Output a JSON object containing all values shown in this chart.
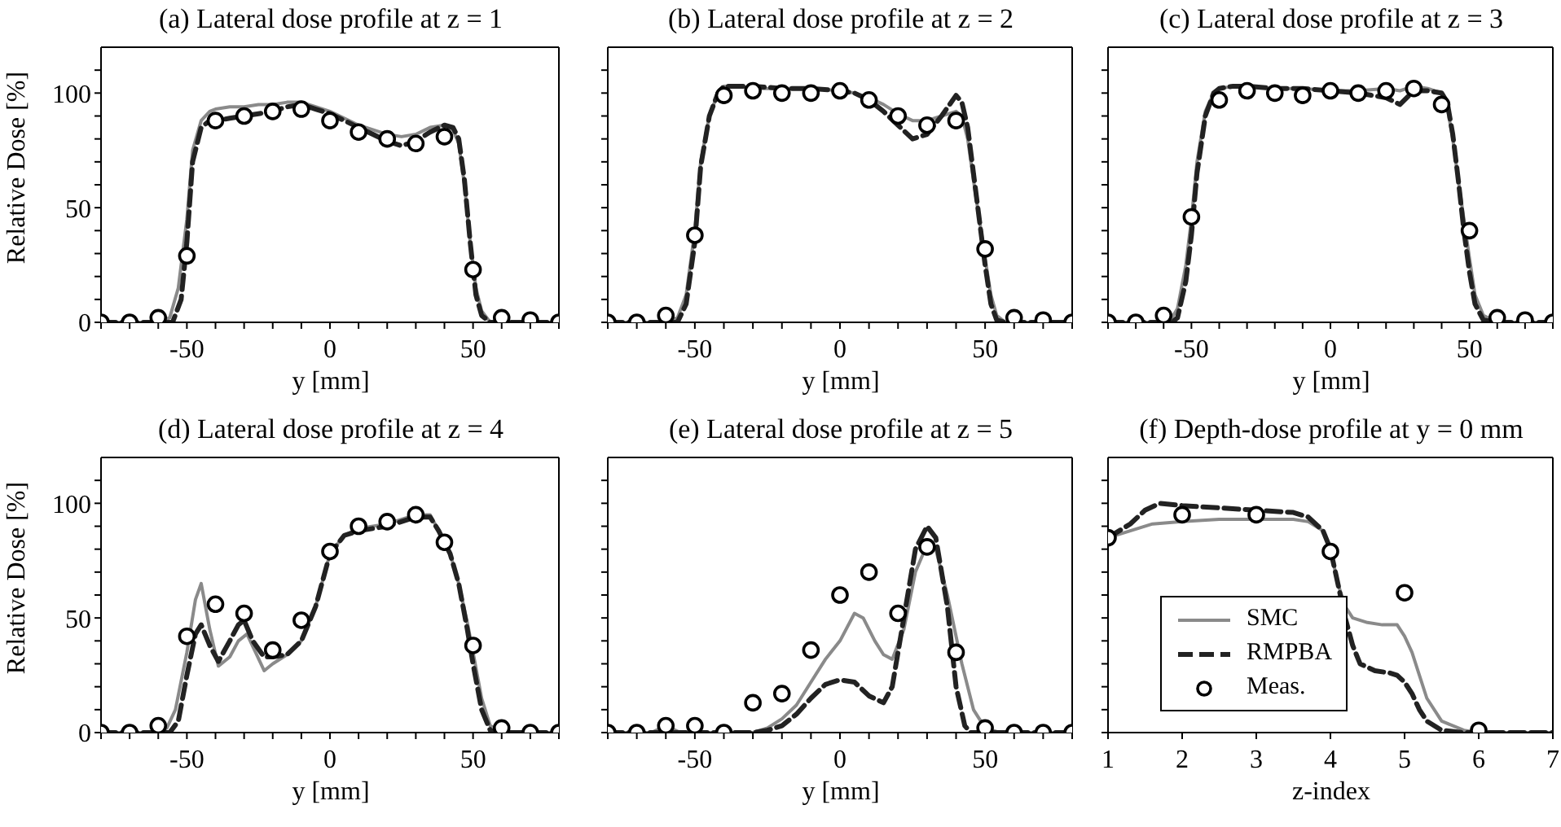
{
  "chart_data": [
    {
      "type": "line",
      "title": "(a) Lateral dose profile at z = 1",
      "xlabel": "y [mm]",
      "ylabel": "Relative Dose [%]",
      "xlim": [
        -80,
        80
      ],
      "ylim": [
        0,
        120
      ],
      "xticks": [
        {
          "value": -80,
          "label": null
        },
        {
          "value": -70,
          "label": null
        },
        {
          "value": -60,
          "label": null
        },
        -50,
        {
          "value": -40,
          "label": null
        },
        {
          "value": -30,
          "label": null
        },
        {
          "value": -20,
          "label": null
        },
        {
          "value": -10,
          "label": null
        },
        0,
        {
          "value": 10,
          "label": null
        },
        {
          "value": 20,
          "label": null
        },
        {
          "value": 30,
          "label": null
        },
        {
          "value": 40,
          "label": null
        },
        50,
        {
          "value": 60,
          "label": null
        },
        {
          "value": 70,
          "label": null
        },
        {
          "value": 80,
          "label": null
        }
      ],
      "yticks": [
        0,
        {
          "value": 10,
          "label": null
        },
        {
          "value": 20,
          "label": null
        },
        {
          "value": 30,
          "label": null
        },
        {
          "value": 40,
          "label": null
        },
        50,
        {
          "value": 60,
          "label": null
        },
        {
          "value": 70,
          "label": null
        },
        {
          "value": 80,
          "label": null
        },
        {
          "value": 90,
          "label": null
        },
        100,
        {
          "value": 110,
          "label": null
        }
      ],
      "series": [
        {
          "type": "line",
          "color": "#8a8a8a",
          "line_style": "solid",
          "x": [
            -80,
            -60,
            -56,
            -53,
            -50,
            -48,
            -45,
            -42,
            -40,
            -35,
            -30,
            -25,
            -20,
            -15,
            -10,
            -5,
            0,
            5,
            10,
            15,
            20,
            25,
            30,
            35,
            40,
            43,
            45,
            47,
            49,
            51,
            53,
            56,
            60,
            80
          ],
          "values": [
            0,
            0,
            2,
            15,
            45,
            75,
            88,
            92,
            93,
            94,
            94,
            95,
            95,
            96,
            96,
            94,
            92,
            89,
            86,
            84,
            82,
            81,
            82,
            85,
            86,
            84,
            78,
            60,
            35,
            15,
            5,
            0,
            0,
            0
          ]
        },
        {
          "type": "line",
          "color": "#222222",
          "line_style": "dashed",
          "x": [
            -80,
            -60,
            -55,
            -52,
            -50,
            -48,
            -45,
            -42,
            -40,
            -35,
            -30,
            -25,
            -20,
            -15,
            -10,
            -5,
            0,
            5,
            10,
            15,
            20,
            25,
            30,
            35,
            40,
            43,
            45,
            47,
            49,
            51,
            53,
            56,
            60,
            80
          ],
          "values": [
            0,
            0,
            0,
            10,
            35,
            70,
            85,
            88,
            88,
            89,
            90,
            91,
            92,
            94,
            95,
            93,
            91,
            88,
            85,
            82,
            79,
            77,
            79,
            83,
            86,
            85,
            80,
            62,
            35,
            12,
            3,
            0,
            0,
            0
          ]
        },
        {
          "type": "scatter",
          "color": "#000000",
          "marker": "circle",
          "x": [
            -80,
            -70,
            -60,
            -50,
            -40,
            -30,
            -20,
            -10,
            0,
            10,
            20,
            30,
            40,
            50,
            60,
            70,
            80
          ],
          "values": [
            0,
            0,
            2,
            29,
            88,
            90,
            92,
            93,
            88,
            83,
            80,
            78,
            81,
            23,
            2,
            1,
            0
          ]
        }
      ]
    },
    {
      "type": "line",
      "title": "(b) Lateral dose profile at z = 2",
      "xlabel": "y [mm]",
      "tick_labels": "x",
      "xlim": [
        -80,
        80
      ],
      "ylim": [
        0,
        120
      ],
      "xticks": [
        {
          "value": -80,
          "label": null
        },
        {
          "value": -70,
          "label": null
        },
        {
          "value": -60,
          "label": null
        },
        -50,
        {
          "value": -40,
          "label": null
        },
        {
          "value": -30,
          "label": null
        },
        {
          "value": -20,
          "label": null
        },
        {
          "value": -10,
          "label": null
        },
        0,
        {
          "value": 10,
          "label": null
        },
        {
          "value": 20,
          "label": null
        },
        {
          "value": 30,
          "label": null
        },
        {
          "value": 40,
          "label": null
        },
        50,
        {
          "value": 60,
          "label": null
        },
        {
          "value": 70,
          "label": null
        },
        {
          "value": 80,
          "label": null
        }
      ],
      "yticks": [
        0,
        {
          "value": 10,
          "label": null
        },
        {
          "value": 20,
          "label": null
        },
        {
          "value": 30,
          "label": null
        },
        {
          "value": 40,
          "label": null
        },
        50,
        {
          "value": 60,
          "label": null
        },
        {
          "value": 70,
          "label": null
        },
        {
          "value": 80,
          "label": null
        },
        {
          "value": 90,
          "label": null
        },
        100,
        {
          "value": 110,
          "label": null
        }
      ],
      "series": [
        {
          "type": "line",
          "color": "#8a8a8a",
          "line_style": "solid",
          "x": [
            -80,
            -60,
            -56,
            -53,
            -50,
            -48,
            -45,
            -42,
            -40,
            -35,
            -30,
            -20,
            -10,
            0,
            5,
            10,
            15,
            20,
            25,
            30,
            35,
            40,
            42,
            44,
            46,
            48,
            50,
            52,
            54,
            57,
            60,
            80
          ],
          "values": [
            0,
            0,
            2,
            12,
            40,
            70,
            90,
            100,
            103,
            103,
            102,
            102,
            102,
            101,
            100,
            98,
            95,
            91,
            88,
            88,
            90,
            92,
            90,
            80,
            62,
            45,
            28,
            12,
            3,
            0,
            0,
            0
          ]
        },
        {
          "type": "line",
          "color": "#222222",
          "line_style": "dashed",
          "x": [
            -80,
            -60,
            -56,
            -53,
            -50,
            -48,
            -45,
            -42,
            -40,
            -35,
            -30,
            -20,
            -10,
            0,
            5,
            10,
            15,
            20,
            25,
            30,
            35,
            40,
            42,
            44,
            46,
            48,
            50,
            52,
            54,
            57,
            60,
            80
          ],
          "values": [
            0,
            0,
            0,
            8,
            35,
            68,
            90,
            100,
            103,
            103,
            103,
            102,
            102,
            101,
            100,
            97,
            92,
            86,
            80,
            82,
            90,
            99,
            96,
            85,
            65,
            45,
            25,
            8,
            1,
            0,
            0,
            0
          ]
        },
        {
          "type": "scatter",
          "color": "#000000",
          "marker": "circle",
          "x": [
            -80,
            -70,
            -60,
            -50,
            -40,
            -30,
            -20,
            -10,
            0,
            10,
            20,
            30,
            40,
            50,
            60,
            70,
            80
          ],
          "values": [
            0,
            0,
            3,
            38,
            99,
            101,
            100,
            100,
            101,
            97,
            90,
            86,
            88,
            32,
            2,
            1,
            0
          ]
        }
      ]
    },
    {
      "type": "line",
      "title": "(c) Lateral dose profile at z = 3",
      "xlabel": "y [mm]",
      "tick_labels": "x",
      "xlim": [
        -80,
        80
      ],
      "ylim": [
        0,
        120
      ],
      "xticks": [
        {
          "value": -80,
          "label": null
        },
        {
          "value": -70,
          "label": null
        },
        {
          "value": -60,
          "label": null
        },
        -50,
        {
          "value": -40,
          "label": null
        },
        {
          "value": -30,
          "label": null
        },
        {
          "value": -20,
          "label": null
        },
        {
          "value": -10,
          "label": null
        },
        0,
        {
          "value": 10,
          "label": null
        },
        {
          "value": 20,
          "label": null
        },
        {
          "value": 30,
          "label": null
        },
        {
          "value": 40,
          "label": null
        },
        50,
        {
          "value": 60,
          "label": null
        },
        {
          "value": 70,
          "label": null
        },
        {
          "value": 80,
          "label": null
        }
      ],
      "yticks": [
        0,
        {
          "value": 10,
          "label": null
        },
        {
          "value": 20,
          "label": null
        },
        {
          "value": 30,
          "label": null
        },
        {
          "value": 40,
          "label": null
        },
        50,
        {
          "value": 60,
          "label": null
        },
        {
          "value": 70,
          "label": null
        },
        {
          "value": 80,
          "label": null
        },
        {
          "value": 90,
          "label": null
        },
        100,
        {
          "value": 110,
          "label": null
        }
      ],
      "series": [
        {
          "type": "line",
          "color": "#8a8a8a",
          "line_style": "solid",
          "x": [
            -80,
            -60,
            -57,
            -55,
            -52,
            -50,
            -48,
            -45,
            -42,
            -40,
            -35,
            -30,
            -20,
            -10,
            0,
            10,
            20,
            25,
            30,
            35,
            40,
            42,
            44,
            46,
            48,
            50,
            52,
            55,
            60,
            80
          ],
          "values": [
            0,
            0,
            2,
            6,
            25,
            45,
            70,
            92,
            100,
            102,
            103,
            103,
            102,
            102,
            101,
            101,
            102,
            101,
            103,
            102,
            100,
            94,
            80,
            62,
            45,
            28,
            12,
            3,
            0,
            0
          ]
        },
        {
          "type": "line",
          "color": "#222222",
          "line_style": "dashed",
          "x": [
            -80,
            -60,
            -57,
            -55,
            -52,
            -50,
            -48,
            -45,
            -42,
            -40,
            -35,
            -30,
            -20,
            -10,
            0,
            10,
            20,
            25,
            30,
            35,
            40,
            42,
            44,
            46,
            48,
            50,
            52,
            55,
            60,
            80
          ],
          "values": [
            0,
            0,
            0,
            2,
            18,
            38,
            65,
            90,
            100,
            102,
            103,
            103,
            102,
            102,
            101,
            100,
            98,
            95,
            101,
            101,
            100,
            96,
            82,
            62,
            40,
            22,
            8,
            1,
            0,
            0
          ]
        },
        {
          "type": "scatter",
          "color": "#000000",
          "marker": "circle",
          "x": [
            -80,
            -70,
            -60,
            -50,
            -40,
            -30,
            -20,
            -10,
            0,
            10,
            20,
            30,
            40,
            50,
            60,
            70,
            80
          ],
          "values": [
            0,
            0,
            3,
            46,
            97,
            101,
            100,
            99,
            101,
            100,
            101,
            102,
            95,
            40,
            2,
            1,
            0
          ]
        }
      ]
    },
    {
      "type": "line",
      "title": "(d) Lateral dose profile at z = 4",
      "xlabel": "y [mm]",
      "ylabel": "Relative Dose [%]",
      "xlim": [
        -80,
        80
      ],
      "ylim": [
        0,
        120
      ],
      "xticks": [
        {
          "value": -80,
          "label": null
        },
        {
          "value": -70,
          "label": null
        },
        {
          "value": -60,
          "label": null
        },
        -50,
        {
          "value": -40,
          "label": null
        },
        {
          "value": -30,
          "label": null
        },
        {
          "value": -20,
          "label": null
        },
        {
          "value": -10,
          "label": null
        },
        0,
        {
          "value": 10,
          "label": null
        },
        {
          "value": 20,
          "label": null
        },
        {
          "value": 30,
          "label": null
        },
        {
          "value": 40,
          "label": null
        },
        50,
        {
          "value": 60,
          "label": null
        },
        {
          "value": 70,
          "label": null
        },
        {
          "value": 80,
          "label": null
        }
      ],
      "yticks": [
        0,
        {
          "value": 10,
          "label": null
        },
        {
          "value": 20,
          "label": null
        },
        {
          "value": 30,
          "label": null
        },
        {
          "value": 40,
          "label": null
        },
        50,
        {
          "value": 60,
          "label": null
        },
        {
          "value": 70,
          "label": null
        },
        {
          "value": 80,
          "label": null
        },
        {
          "value": 90,
          "label": null
        },
        100,
        {
          "value": 110,
          "label": null
        }
      ],
      "series": [
        {
          "type": "line",
          "color": "#8a8a8a",
          "line_style": "solid",
          "x": [
            -80,
            -60,
            -57,
            -54,
            -50,
            -47,
            -45,
            -42,
            -39,
            -35,
            -32,
            -29,
            -26,
            -23,
            -20,
            -15,
            -10,
            -5,
            0,
            5,
            10,
            20,
            30,
            35,
            38,
            42,
            45,
            48,
            50,
            53,
            56,
            60,
            80
          ],
          "values": [
            0,
            0,
            2,
            10,
            35,
            58,
            65,
            45,
            29,
            33,
            40,
            43,
            35,
            27,
            30,
            34,
            40,
            55,
            78,
            86,
            89,
            91,
            95,
            95,
            88,
            78,
            65,
            48,
            35,
            15,
            3,
            0,
            0
          ]
        },
        {
          "type": "line",
          "color": "#222222",
          "line_style": "dashed",
          "x": [
            -80,
            -60,
            -56,
            -53,
            -50,
            -47,
            -45,
            -42,
            -39,
            -35,
            -32,
            -30,
            -27,
            -23,
            -20,
            -15,
            -10,
            -5,
            0,
            5,
            10,
            20,
            30,
            35,
            38,
            42,
            45,
            48,
            50,
            53,
            56,
            60,
            80
          ],
          "values": [
            0,
            0,
            0,
            5,
            25,
            43,
            47,
            38,
            31,
            40,
            47,
            49,
            40,
            33,
            33,
            34,
            40,
            55,
            78,
            86,
            88,
            90,
            94,
            94,
            88,
            78,
            65,
            45,
            30,
            10,
            1,
            0,
            0
          ]
        },
        {
          "type": "scatter",
          "color": "#000000",
          "marker": "circle",
          "x": [
            -80,
            -70,
            -60,
            -50,
            -40,
            -30,
            -20,
            -10,
            0,
            10,
            20,
            30,
            40,
            50,
            60,
            70,
            80
          ],
          "values": [
            0,
            0,
            3,
            42,
            56,
            52,
            36,
            49,
            79,
            90,
            92,
            95,
            83,
            38,
            2,
            0,
            0
          ]
        }
      ]
    },
    {
      "type": "line",
      "title": "(e) Lateral dose profile at z = 5",
      "xlabel": "y [mm]",
      "tick_labels": "x",
      "xlim": [
        -80,
        80
      ],
      "ylim": [
        0,
        120
      ],
      "xticks": [
        {
          "value": -80,
          "label": null
        },
        {
          "value": -70,
          "label": null
        },
        {
          "value": -60,
          "label": null
        },
        -50,
        {
          "value": -40,
          "label": null
        },
        {
          "value": -30,
          "label": null
        },
        {
          "value": -20,
          "label": null
        },
        {
          "value": -10,
          "label": null
        },
        0,
        {
          "value": 10,
          "label": null
        },
        {
          "value": 20,
          "label": null
        },
        {
          "value": 30,
          "label": null
        },
        {
          "value": 40,
          "label": null
        },
        50,
        {
          "value": 60,
          "label": null
        },
        {
          "value": 70,
          "label": null
        },
        {
          "value": 80,
          "label": null
        }
      ],
      "yticks": [
        0,
        {
          "value": 10,
          "label": null
        },
        {
          "value": 20,
          "label": null
        },
        {
          "value": 30,
          "label": null
        },
        {
          "value": 40,
          "label": null
        },
        50,
        {
          "value": 60,
          "label": null
        },
        {
          "value": 70,
          "label": null
        },
        {
          "value": 80,
          "label": null
        },
        {
          "value": 90,
          "label": null
        },
        100,
        {
          "value": 110,
          "label": null
        }
      ],
      "series": [
        {
          "type": "line",
          "color": "#8a8a8a",
          "line_style": "solid",
          "x": [
            -80,
            -65,
            -60,
            -55,
            -30,
            -25,
            -20,
            -15,
            -10,
            -5,
            0,
            5,
            8,
            12,
            15,
            18,
            22,
            26,
            30,
            33,
            37,
            42,
            46,
            50,
            55,
            80
          ],
          "values": [
            0,
            0,
            3,
            0,
            0,
            2,
            6,
            12,
            22,
            32,
            40,
            52,
            50,
            40,
            34,
            32,
            45,
            70,
            82,
            80,
            60,
            30,
            10,
            2,
            0,
            0
          ]
        },
        {
          "type": "line",
          "color": "#222222",
          "line_style": "dashed",
          "x": [
            -80,
            -30,
            -25,
            -20,
            -15,
            -10,
            -5,
            0,
            5,
            10,
            15,
            18,
            22,
            26,
            30,
            33,
            37,
            40,
            43,
            45,
            80
          ],
          "values": [
            0,
            0,
            1,
            3,
            8,
            15,
            21,
            23,
            22,
            16,
            13,
            20,
            50,
            80,
            90,
            85,
            55,
            20,
            3,
            0,
            0
          ]
        },
        {
          "type": "scatter",
          "color": "#000000",
          "marker": "circle",
          "x": [
            -80,
            -70,
            -60,
            -50,
            -40,
            -30,
            -20,
            -10,
            0,
            10,
            20,
            30,
            40,
            50,
            60,
            70,
            80
          ],
          "values": [
            0,
            0,
            3,
            3,
            0,
            13,
            17,
            36,
            60,
            70,
            52,
            81,
            35,
            2,
            0,
            0,
            0
          ]
        }
      ]
    },
    {
      "type": "line",
      "title": "(f) Depth-dose profile at y = 0 mm",
      "xlabel": "z-index",
      "tick_labels": "x",
      "legend": "bottom left",
      "xlim": [
        1,
        7
      ],
      "ylim": [
        0,
        120
      ],
      "xticks": [
        1,
        2,
        3,
        4,
        5,
        6,
        7
      ],
      "yticks": [
        0,
        {
          "value": 10,
          "label": null
        },
        {
          "value": 20,
          "label": null
        },
        {
          "value": 30,
          "label": null
        },
        {
          "value": 40,
          "label": null
        },
        50,
        {
          "value": 60,
          "label": null
        },
        {
          "value": 70,
          "label": null
        },
        {
          "value": 80,
          "label": null
        },
        {
          "value": 90,
          "label": null
        },
        100,
        {
          "value": 110,
          "label": null
        }
      ],
      "series": [
        {
          "name": "SMC",
          "type": "line",
          "color": "#8a8a8a",
          "line_style": "solid",
          "x": [
            1,
            1.3,
            1.6,
            2,
            2.5,
            3,
            3.5,
            3.7,
            3.9,
            4,
            4.1,
            4.2,
            4.3,
            4.5,
            4.7,
            4.9,
            5,
            5.1,
            5.2,
            5.3,
            5.5,
            5.8,
            6,
            7
          ],
          "values": [
            85,
            88,
            91,
            92,
            93,
            93,
            93,
            92,
            88,
            80,
            65,
            55,
            50,
            48,
            47,
            47,
            42,
            35,
            25,
            15,
            5,
            1,
            0,
            0
          ]
        },
        {
          "name": "RMPBA",
          "type": "line",
          "color": "#222222",
          "line_style": "dashed",
          "x": [
            1,
            1.3,
            1.5,
            1.7,
            2,
            2.5,
            3,
            3.5,
            3.7,
            3.9,
            4,
            4.1,
            4.2,
            4.3,
            4.4,
            4.6,
            4.8,
            4.9,
            5,
            5.1,
            5.2,
            5.3,
            5.5,
            5.8,
            7
          ],
          "values": [
            85,
            91,
            97,
            100,
            99,
            98,
            97,
            96,
            94,
            88,
            80,
            65,
            50,
            38,
            30,
            27,
            26,
            25,
            22,
            17,
            10,
            5,
            1,
            0,
            0
          ]
        },
        {
          "name": "Meas.",
          "type": "scatter",
          "color": "#000000",
          "marker": "circle",
          "x": [
            1,
            2,
            3,
            4,
            5,
            6
          ],
          "values": [
            85,
            95,
            95,
            79,
            61,
            1
          ]
        }
      ]
    }
  ]
}
